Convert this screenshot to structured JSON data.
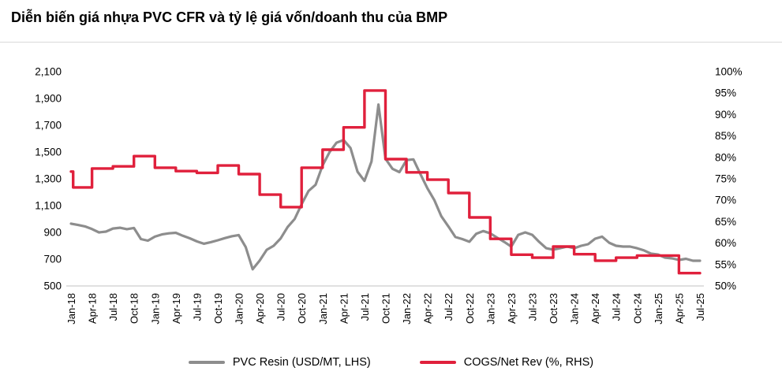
{
  "title": "Diễn biến giá nhựa PVC CFR và tỷ lệ giá vốn/doanh thu của BMP",
  "colors": {
    "pvc_line": "#8d8d8d",
    "cogs_line": "#e0203c",
    "axis_line": "#d5d5d5",
    "divider": "#d9d9d9",
    "text": "#000000"
  },
  "legend": [
    {
      "label": "PVC Resin (USD/MT, LHS)",
      "color_key": "pvc_line"
    },
    {
      "label": "COGS/Net Rev (%, RHS)",
      "color_key": "cogs_line"
    }
  ],
  "chart_data": {
    "type": "line",
    "title": "Diễn biến giá nhựa PVC CFR và tỷ lệ giá vốn/doanh thu của BMP",
    "x_start_month": "Jan-18",
    "x_end_month": "Jul-25",
    "x_tick_labels": [
      "Jan-18",
      "Apr-18",
      "Jul-18",
      "Oct-18",
      "Jan-19",
      "Apr-19",
      "Jul-19",
      "Oct-19",
      "Jan-20",
      "Apr-20",
      "Jul-20",
      "Oct-20",
      "Jan-21",
      "Apr-21",
      "Jul-21",
      "Oct-21",
      "Jan-22",
      "Apr-22",
      "Jul-22",
      "Oct-22",
      "Jan-23",
      "Apr-23",
      "Jul-23",
      "Oct-23",
      "Jan-24",
      "Apr-24",
      "Jul-24",
      "Oct-24",
      "Jan-25",
      "Apr-25",
      "Jul-25"
    ],
    "left_axis": {
      "units": "USD/MT",
      "min": 500,
      "max": 2100,
      "step": 200,
      "tick_labels": [
        "2,100",
        "1,900",
        "1,700",
        "1,500",
        "1,300",
        "1,100",
        "900",
        "700",
        "500"
      ]
    },
    "right_axis": {
      "units": "%",
      "min": 50,
      "max": 100,
      "step": 5,
      "tick_labels": [
        "100%",
        "95%",
        "90%",
        "85%",
        "80%",
        "75%",
        "70%",
        "65%",
        "60%",
        "55%",
        "50%"
      ]
    },
    "grid": "none",
    "legend_position": "bottom-center",
    "series": [
      {
        "name": "PVC Resin (USD/MT, LHS)",
        "axis": "left",
        "style": "line",
        "frequency": "monthly",
        "monthly_values": [
          965,
          955,
          945,
          925,
          900,
          906,
          929,
          935,
          924,
          933,
          850,
          838,
          868,
          885,
          893,
          897,
          875,
          856,
          833,
          815,
          827,
          841,
          857,
          871,
          880,
          790,
          625,
          690,
          770,
          800,
          855,
          940,
          1000,
          1110,
          1210,
          1255,
          1400,
          1500,
          1570,
          1590,
          1530,
          1353,
          1285,
          1430,
          1855,
          1450,
          1375,
          1350,
          1440,
          1445,
          1335,
          1230,
          1140,
          1020,
          945,
          865,
          850,
          830,
          890,
          910,
          893,
          860,
          829,
          794,
          882,
          900,
          882,
          829,
          782,
          771,
          782,
          794,
          782,
          800,
          812,
          853,
          868,
          823,
          800,
          794,
          794,
          782,
          765,
          741,
          735,
          712,
          706,
          694,
          703,
          688,
          688
        ]
      },
      {
        "name": "COGS/Net Rev (%, RHS)",
        "axis": "right",
        "style": "step",
        "frequency": "quarterly",
        "first_quarter": "Q1-18",
        "initial_tick_pct": 76.7,
        "quarterly_pct": [
          73.0,
          77.4,
          77.9,
          80.3,
          77.6,
          76.8,
          76.4,
          78.1,
          76.1,
          71.3,
          68.4,
          77.6,
          81.8,
          87.0,
          95.6,
          79.6,
          76.5,
          74.8,
          71.7,
          66.0,
          61.0,
          57.3,
          56.6,
          59.2,
          57.4,
          55.9,
          56.6,
          57.1,
          57.1,
          53.0
        ]
      }
    ]
  }
}
